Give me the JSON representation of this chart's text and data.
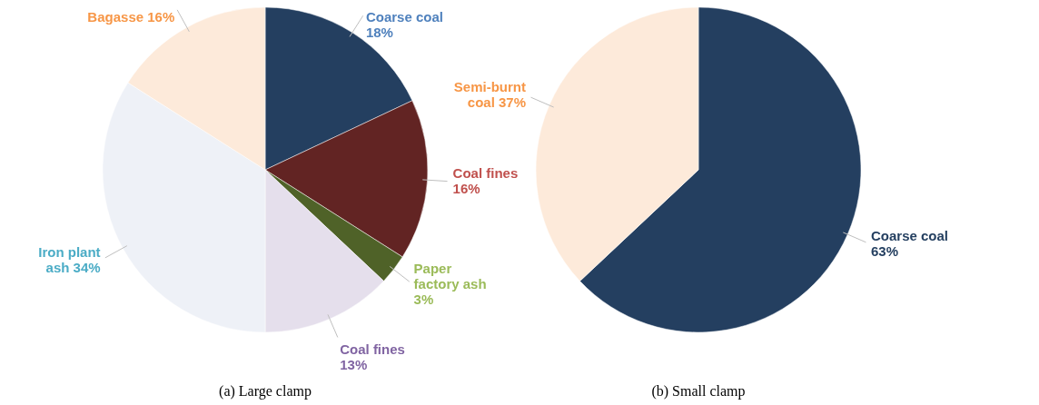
{
  "chart_data": [
    {
      "type": "pie",
      "title": "(a) Large clamp",
      "categories": [
        "Coarse coal",
        "Coal fines",
        "Paper factory ash",
        "Coal fines",
        "Iron plant ash",
        "Bagasse"
      ],
      "values": [
        18,
        16,
        3,
        13,
        34,
        16
      ],
      "value_labels": [
        "18%",
        "16%",
        "3%",
        "13%",
        "34%",
        "16%"
      ],
      "colors": [
        "#243f60",
        "#622423",
        "#4f6228",
        "#e5dfec",
        "#eef1f7",
        "#fdeada"
      ]
    },
    {
      "type": "pie",
      "title": "(b) Small clamp",
      "categories": [
        "Coarse coal",
        "Semi-burnt coal"
      ],
      "values": [
        63,
        37
      ],
      "value_labels": [
        "63%",
        "37%"
      ],
      "colors": [
        "#243f60",
        "#fdeada"
      ]
    }
  ]
}
